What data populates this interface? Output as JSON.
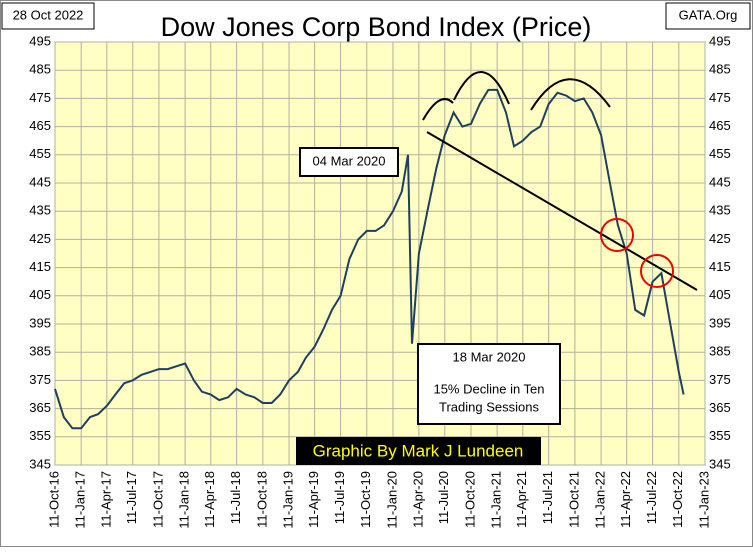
{
  "chart_data": {
    "type": "line",
    "title": "Dow Jones Corp Bond Index (Price)",
    "date_label": "28 Oct 2022",
    "source": "GATA.Org",
    "credit": "Graphic By Mark J Lundeen",
    "annotations": [
      "04 Mar 2020",
      "18 Mar 2020"
    ],
    "note_lines": [
      "15% Decline in Ten",
      "Trading Sessions"
    ],
    "x": [
      "2016-10-11",
      "2016-11-11",
      "2016-12-11",
      "2017-01-11",
      "2017-02-11",
      "2017-03-11",
      "2017-04-11",
      "2017-05-11",
      "2017-06-11",
      "2017-07-11",
      "2017-08-11",
      "2017-09-11",
      "2017-10-11",
      "2017-11-11",
      "2017-12-11",
      "2018-01-11",
      "2018-02-11",
      "2018-03-11",
      "2018-04-11",
      "2018-05-11",
      "2018-06-11",
      "2018-07-11",
      "2018-08-11",
      "2018-09-11",
      "2018-10-11",
      "2018-11-11",
      "2018-12-11",
      "2019-01-11",
      "2019-02-11",
      "2019-03-11",
      "2019-04-11",
      "2019-05-11",
      "2019-06-11",
      "2019-07-11",
      "2019-08-11",
      "2019-09-11",
      "2019-10-11",
      "2019-11-11",
      "2019-12-11",
      "2020-01-11",
      "2020-02-11",
      "2020-03-04",
      "2020-03-18",
      "2020-04-11",
      "2020-05-11",
      "2020-06-11",
      "2020-07-11",
      "2020-08-11",
      "2020-09-11",
      "2020-10-11",
      "2020-11-11",
      "2020-12-11",
      "2021-01-11",
      "2021-02-11",
      "2021-03-11",
      "2021-04-11",
      "2021-05-11",
      "2021-06-11",
      "2021-07-11",
      "2021-08-11",
      "2021-09-11",
      "2021-10-11",
      "2021-11-11",
      "2021-12-11",
      "2022-01-11",
      "2022-02-11",
      "2022-03-11",
      "2022-04-11",
      "2022-05-11",
      "2022-06-11",
      "2022-07-11",
      "2022-08-11",
      "2022-09-11",
      "2022-10-11",
      "2022-10-28"
    ],
    "series": [
      {
        "name": "Dow Jones Corp Bond Index",
        "color": "#1f3f5f",
        "values": [
          372,
          362,
          358,
          358,
          362,
          363,
          366,
          370,
          374,
          375,
          377,
          378,
          379,
          379,
          380,
          381,
          375,
          371,
          370,
          368,
          369,
          372,
          370,
          369,
          367,
          367,
          370,
          375,
          378,
          383,
          387,
          393,
          400,
          405,
          418,
          425,
          428,
          428,
          430,
          435,
          442,
          455,
          388,
          420,
          435,
          450,
          462,
          470,
          465,
          466,
          473,
          478,
          478,
          470,
          458,
          460,
          463,
          465,
          473,
          477,
          476,
          474,
          475,
          470,
          462,
          445,
          430,
          420,
          400,
          398,
          410,
          413,
          395,
          378,
          370
        ]
      }
    ],
    "xlim": [
      "2016-10-11",
      "2023-01-11"
    ],
    "xticks": [
      {
        "value": "2016-10-11",
        "label": "11-Oct-16"
      },
      {
        "value": "2017-01-11",
        "label": "11-Jan-17"
      },
      {
        "value": "2017-04-11",
        "label": "11-Apr-17"
      },
      {
        "value": "2017-07-11",
        "label": "11-Jul-17"
      },
      {
        "value": "2017-10-11",
        "label": "11-Oct-17"
      },
      {
        "value": "2018-01-11",
        "label": "11-Jan-18"
      },
      {
        "value": "2018-04-11",
        "label": "11-Apr-18"
      },
      {
        "value": "2018-07-11",
        "label": "11-Jul-18"
      },
      {
        "value": "2018-10-11",
        "label": "11-Oct-18"
      },
      {
        "value": "2019-01-11",
        "label": "11-Jan-19"
      },
      {
        "value": "2019-04-11",
        "label": "11-Apr-19"
      },
      {
        "value": "2019-07-11",
        "label": "11-Jul-19"
      },
      {
        "value": "2019-10-11",
        "label": "11-Oct-19"
      },
      {
        "value": "2020-01-11",
        "label": "11-Jan-20"
      },
      {
        "value": "2020-04-11",
        "label": "11-Apr-20"
      },
      {
        "value": "2020-07-11",
        "label": "11-Jul-20"
      },
      {
        "value": "2020-10-11",
        "label": "11-Oct-20"
      },
      {
        "value": "2021-01-11",
        "label": "11-Jan-21"
      },
      {
        "value": "2021-04-11",
        "label": "11-Apr-21"
      },
      {
        "value": "2021-07-11",
        "label": "11-Jul-21"
      },
      {
        "value": "2021-10-11",
        "label": "11-Oct-21"
      },
      {
        "value": "2022-01-11",
        "label": "11-Jan-22"
      },
      {
        "value": "2022-04-11",
        "label": "11-Apr-22"
      },
      {
        "value": "2022-07-11",
        "label": "11-Jul-22"
      },
      {
        "value": "2022-10-11",
        "label": "11-Oct-22"
      },
      {
        "value": "2023-01-11",
        "label": "11-Jan-23"
      }
    ],
    "ylim": [
      345,
      495
    ],
    "yticks": [
      345,
      355,
      365,
      375,
      385,
      395,
      405,
      415,
      425,
      435,
      445,
      455,
      465,
      475,
      485,
      495
    ],
    "grid": true
  }
}
